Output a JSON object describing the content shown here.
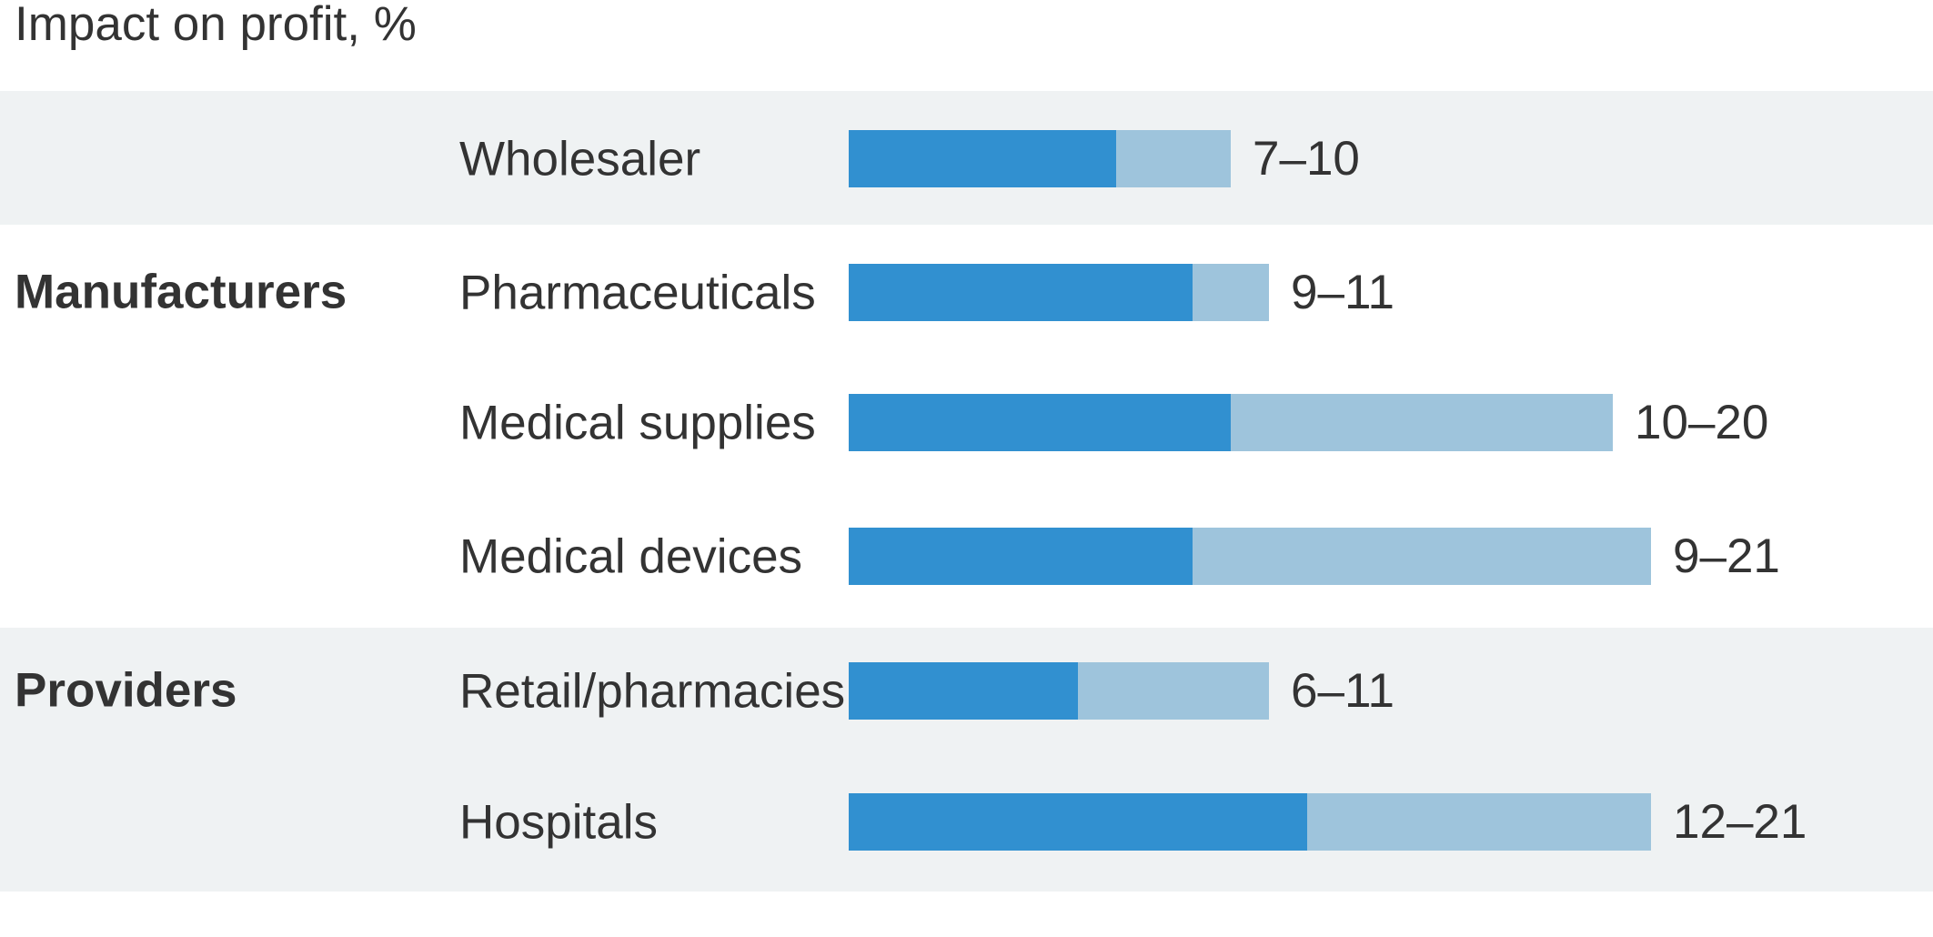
{
  "colors": {
    "bar-dark": "#3190d0",
    "bar-light": "#9ec4dc",
    "band": "#eff2f3",
    "text": "#333333"
  },
  "chart_data": {
    "type": "bar",
    "orientation": "horizontal",
    "variant": "stacked range bars (dark = low estimate, light = spread up to high estimate)",
    "title": "Impact on profit, %",
    "value_unit": "%",
    "axis": {
      "min": 0,
      "max_value_shown": 21,
      "gridlines": false,
      "tick_labels": "none"
    },
    "legend": "none",
    "value_labels_position": "right of bar end",
    "categories": [
      "Wholesaler",
      "Pharmaceuticals",
      "Medical supplies",
      "Medical devices",
      "Retail/pharmacies",
      "Hospitals"
    ],
    "series": [
      {
        "name": "low estimate (dark blue)",
        "values": [
          7,
          9,
          10,
          9,
          6,
          12
        ]
      },
      {
        "name": "range to high estimate (light blue)",
        "values": [
          3,
          2,
          10,
          12,
          5,
          9
        ]
      }
    ],
    "groups": [
      {
        "name": "Manufacturers"
      },
      {
        "name": "Providers"
      }
    ],
    "rows": [
      {
        "group": null,
        "label": "Wholesaler",
        "low": 7,
        "high": 10,
        "range_label": "7–10",
        "highlighted_band": true
      },
      {
        "group": "Manufacturers",
        "label": "Pharmaceuticals",
        "low": 9,
        "high": 11,
        "range_label": "9–11",
        "highlighted_band": false
      },
      {
        "group": "Manufacturers",
        "label": "Medical supplies",
        "low": 10,
        "high": 20,
        "range_label": "10–20",
        "highlighted_band": false
      },
      {
        "group": "Manufacturers",
        "label": "Medical devices",
        "low": 9,
        "high": 21,
        "range_label": "9–21",
        "highlighted_band": false
      },
      {
        "group": "Providers",
        "label": "Retail/pharmacies",
        "low": 6,
        "high": 11,
        "range_label": "6–11",
        "highlighted_band": true
      },
      {
        "group": "Providers",
        "label": "Hospitals",
        "low": 12,
        "high": 21,
        "range_label": "12–21",
        "highlighted_band": true
      }
    ]
  }
}
